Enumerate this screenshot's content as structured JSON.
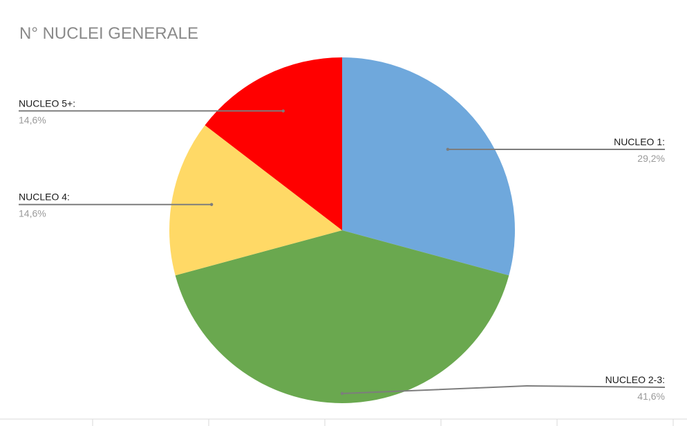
{
  "chart_data": {
    "type": "pie",
    "title": "N° NUCLEI GENERALE",
    "slices": [
      {
        "label": "NUCLEO 1:",
        "value_text": "29,2%",
        "value": 29.2,
        "color": "#6fa8dc"
      },
      {
        "label": "NUCLEO 2-3:",
        "value_text": "41,6%",
        "value": 41.6,
        "color": "#6aa84f"
      },
      {
        "label": "NUCLEO 4:",
        "value_text": "14,6%",
        "value": 14.6,
        "color": "#ffd966"
      },
      {
        "label": "NUCLEO 5+:",
        "value_text": "14,6%",
        "value": 14.6,
        "color": "#ff0000"
      }
    ],
    "start": "12 o'clock",
    "direction": "clockwise",
    "legend": "none"
  }
}
